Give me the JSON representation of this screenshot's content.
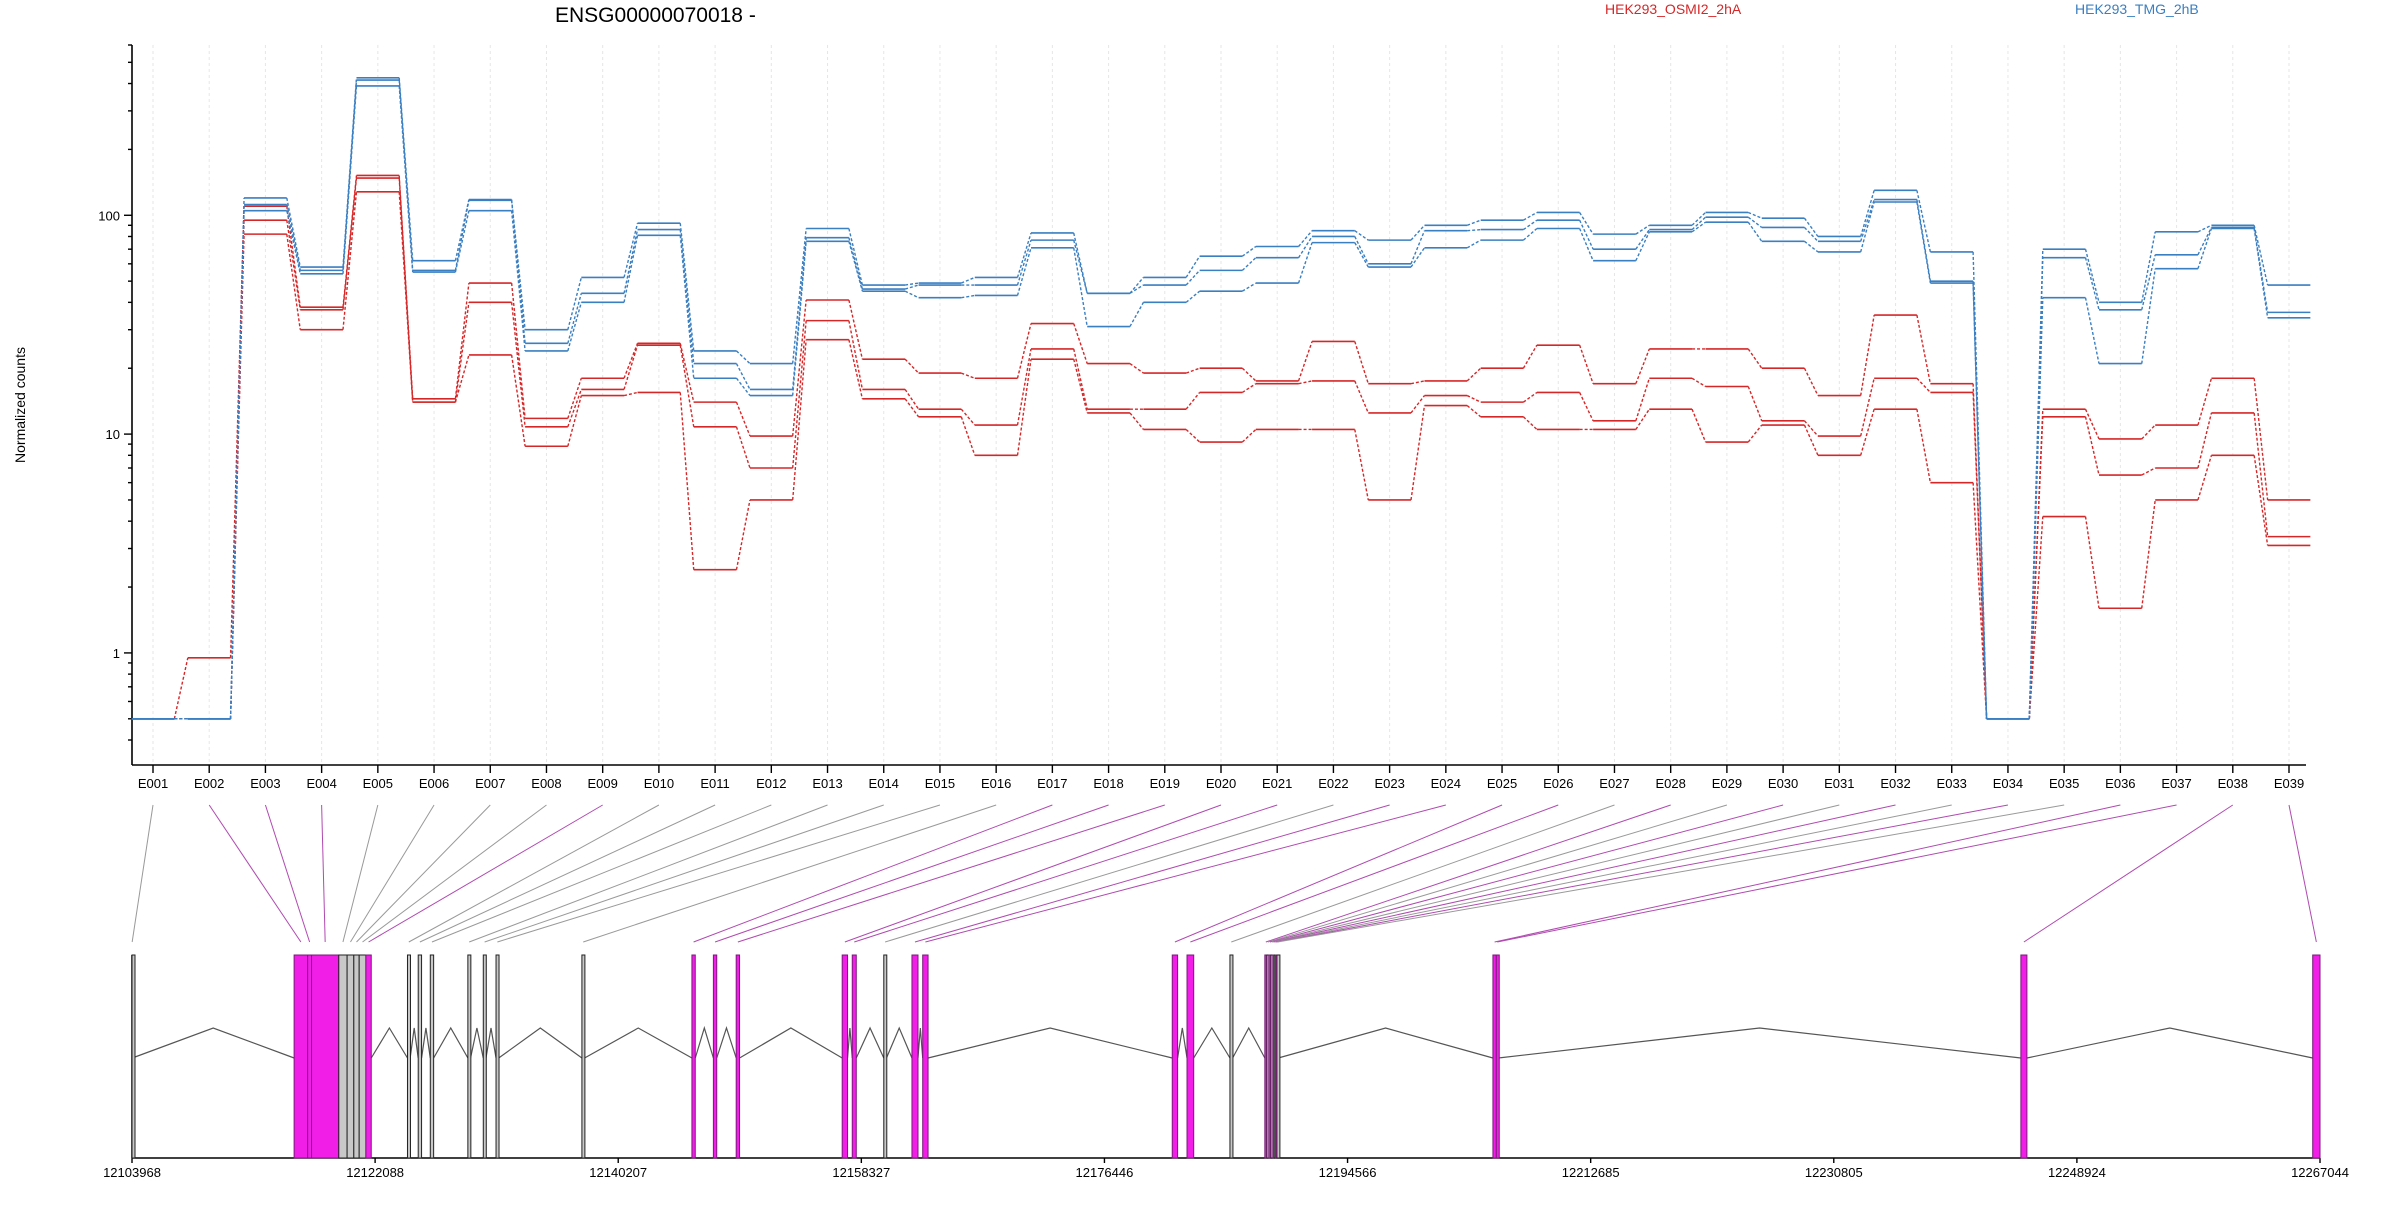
{
  "chart_data": {
    "type": "line",
    "title": "ENSG00000070018 -",
    "xlabel": "",
    "ylabel": "Normalized counts",
    "yscale": "log",
    "ylim": [
      0.4,
      600
    ],
    "yticks": [
      1,
      10,
      100
    ],
    "ytick_labels": [
      "1",
      "10",
      "100"
    ],
    "grid": "vertical dashed lines at exon positions",
    "legend_placement": "top",
    "categories": [
      "E001",
      "E002",
      "E003",
      "E004",
      "E005",
      "E006",
      "E007",
      "E008",
      "E009",
      "E010",
      "E011",
      "E012",
      "E013",
      "E014",
      "E015",
      "E016",
      "E017",
      "E018",
      "E019",
      "E020",
      "E021",
      "E022",
      "E023",
      "E024",
      "E025",
      "E026",
      "E027",
      "E028",
      "E029",
      "E030",
      "E031",
      "E032",
      "E033",
      "E034",
      "E035",
      "E036",
      "E037",
      "E038",
      "E039"
    ],
    "legend": [
      {
        "name": "HEK293_OSMI2_2hA",
        "color": "#d62728"
      },
      {
        "name": "HEK293_TMG_2hB",
        "color": "#3a7fc1"
      }
    ],
    "series": [
      {
        "group": "HEK293_OSMI2_2hA",
        "color": "#d62728",
        "values": [
          0.5,
          0.95,
          110,
          38,
          152,
          14.5,
          49,
          11.8,
          18,
          26,
          14,
          9.8,
          41,
          22,
          19,
          18,
          32,
          21,
          19,
          20,
          17.5,
          26.5,
          17,
          17.5,
          20,
          25.5,
          17,
          24.5,
          24.5,
          20,
          15,
          35,
          17,
          0.5,
          13,
          9.5,
          11,
          18,
          5
        ]
      },
      {
        "group": "HEK293_OSMI2_2hA",
        "color": "#d62728",
        "values": [
          0.5,
          0.5,
          95,
          37,
          148,
          14,
          40,
          10.8,
          16,
          25.5,
          10.8,
          7,
          33,
          16,
          13,
          11,
          24.5,
          13,
          13,
          15.5,
          17,
          17.5,
          12.5,
          15,
          14,
          15.5,
          11.5,
          18,
          16.5,
          11.5,
          9.8,
          18,
          15.5,
          0.5,
          12,
          6.5,
          7,
          12.5,
          3.4
        ]
      },
      {
        "group": "HEK293_OSMI2_2hA",
        "color": "#d62728",
        "values": [
          0.5,
          0.5,
          82,
          30,
          128,
          14,
          23,
          8.8,
          15,
          15.5,
          2.4,
          5,
          27,
          14.5,
          12,
          8,
          22,
          12.5,
          10.5,
          9.2,
          10.5,
          10.5,
          5,
          13.5,
          12,
          10.5,
          10.5,
          13,
          9.2,
          11,
          8,
          13,
          6,
          0.5,
          4.2,
          1.6,
          5,
          8,
          3.1
        ]
      },
      {
        "group": "HEK293_TMG_2hB",
        "color": "#3a7fc1",
        "values": [
          0.5,
          0.5,
          120,
          58,
          425,
          62,
          118,
          30,
          52,
          92,
          24,
          21,
          87,
          48,
          49,
          52,
          83,
          44,
          52,
          65,
          72,
          85,
          77,
          90,
          95,
          103,
          82,
          90,
          103,
          97,
          80,
          130,
          68,
          0.5,
          70,
          40,
          84,
          90,
          48
        ]
      },
      {
        "group": "HEK293_TMG_2hB",
        "color": "#3a7fc1",
        "values": [
          0.5,
          0.5,
          112,
          56,
          415,
          56,
          117,
          26,
          44,
          86,
          21,
          16,
          79,
          46,
          48,
          48,
          77,
          44,
          48,
          56,
          64,
          80,
          60,
          85,
          86,
          95,
          70,
          86,
          98,
          88,
          76,
          118,
          50,
          0.5,
          64,
          37,
          66,
          88,
          36
        ]
      },
      {
        "group": "HEK293_TMG_2hB",
        "color": "#3a7fc1",
        "values": [
          0.5,
          0.5,
          105,
          54,
          390,
          55,
          105,
          24,
          40,
          81,
          18,
          15,
          76,
          45,
          42,
          43,
          71,
          31,
          40,
          45,
          49,
          75,
          58,
          71,
          77,
          87,
          62,
          84,
          93,
          76,
          68,
          115,
          49,
          0.5,
          42,
          21,
          57,
          87,
          34
        ]
      }
    ],
    "gene_model": {
      "coordinate_ticks": [
        "12103968",
        "12122088",
        "12140207",
        "12158327",
        "12176446",
        "12194566",
        "12212685",
        "12230805",
        "12248924",
        "12267044"
      ],
      "coord_min": 12103968,
      "coord_max": 12267044,
      "exons": [
        {
          "id": "E001",
          "start": 12103968,
          "end": 12103990,
          "highlight": false
        },
        {
          "id": "E002",
          "start": 12116050,
          "end": 12117060,
          "highlight": true
        },
        {
          "id": "E003",
          "start": 12117060,
          "end": 12117350,
          "highlight": true
        },
        {
          "id": "E004",
          "start": 12117350,
          "end": 12119380,
          "highlight": true
        },
        {
          "id": "E005",
          "start": 12119380,
          "end": 12120000,
          "highlight": false
        },
        {
          "id": "E006",
          "start": 12120000,
          "end": 12120500,
          "highlight": false
        },
        {
          "id": "E007",
          "start": 12120500,
          "end": 12120900,
          "highlight": false
        },
        {
          "id": "E008",
          "start": 12120900,
          "end": 12121400,
          "highlight": false
        },
        {
          "id": "E009",
          "start": 12121400,
          "end": 12121800,
          "highlight": true
        },
        {
          "id": "E010",
          "start": 12124500,
          "end": 12124700,
          "highlight": false
        },
        {
          "id": "E011",
          "start": 12125300,
          "end": 12125550,
          "highlight": false
        },
        {
          "id": "E012",
          "start": 12126200,
          "end": 12126450,
          "highlight": false
        },
        {
          "id": "E013",
          "start": 12129000,
          "end": 12129200,
          "highlight": false
        },
        {
          "id": "E014",
          "start": 12130150,
          "end": 12130350,
          "highlight": false
        },
        {
          "id": "E015",
          "start": 12131100,
          "end": 12131300,
          "highlight": false
        },
        {
          "id": "E016",
          "start": 12137500,
          "end": 12137700,
          "highlight": false
        },
        {
          "id": "E017",
          "start": 12145700,
          "end": 12145950,
          "highlight": true
        },
        {
          "id": "E018",
          "start": 12147300,
          "end": 12147550,
          "highlight": true
        },
        {
          "id": "E019",
          "start": 12149000,
          "end": 12149250,
          "highlight": true
        },
        {
          "id": "E020",
          "start": 12156900,
          "end": 12157300,
          "highlight": true
        },
        {
          "id": "E021",
          "start": 12157650,
          "end": 12157950,
          "highlight": true
        },
        {
          "id": "E022",
          "start": 12160000,
          "end": 12160200,
          "highlight": false
        },
        {
          "id": "E023",
          "start": 12162100,
          "end": 12162550,
          "highlight": true
        },
        {
          "id": "E024",
          "start": 12162900,
          "end": 12163300,
          "highlight": true
        },
        {
          "id": "E025",
          "start": 12181500,
          "end": 12181900,
          "highlight": true
        },
        {
          "id": "E026",
          "start": 12182600,
          "end": 12183100,
          "highlight": true
        },
        {
          "id": "E027",
          "start": 12185800,
          "end": 12186000,
          "highlight": false
        },
        {
          "id": "E028",
          "start": 12188400,
          "end": 12188550,
          "highlight": true
        },
        {
          "id": "E029",
          "start": 12188550,
          "end": 12188700,
          "highlight": false
        },
        {
          "id": "E030",
          "start": 12188700,
          "end": 12188850,
          "highlight": true
        },
        {
          "id": "E031",
          "start": 12188850,
          "end": 12189000,
          "highlight": false
        },
        {
          "id": "E032",
          "start": 12189000,
          "end": 12189100,
          "highlight": true
        },
        {
          "id": "E033",
          "start": 12189100,
          "end": 12189200,
          "highlight": false
        },
        {
          "id": "E034",
          "start": 12189200,
          "end": 12189300,
          "highlight": true
        },
        {
          "id": "E035",
          "start": 12189300,
          "end": 12189400,
          "highlight": false
        },
        {
          "id": "E036",
          "start": 12205400,
          "end": 12205650,
          "highlight": true
        },
        {
          "id": "E037",
          "start": 12205650,
          "end": 12205800,
          "highlight": true
        },
        {
          "id": "E038",
          "start": 12244750,
          "end": 12245200,
          "highlight": true
        },
        {
          "id": "E039",
          "start": 12266500,
          "end": 12267044,
          "highlight": true
        }
      ]
    }
  }
}
